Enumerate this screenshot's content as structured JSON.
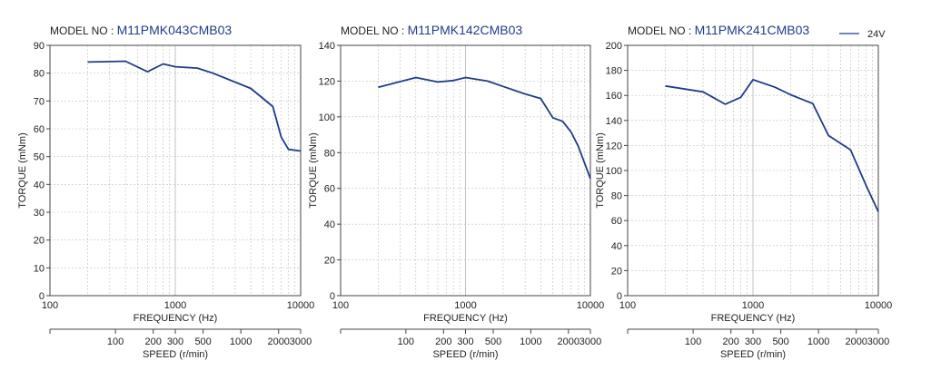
{
  "colors": {
    "series": "#1f3c88",
    "grid": "#bdbdbd",
    "axis": "#444444",
    "text": "#222222",
    "title_model": "#1f3c88"
  },
  "legend": {
    "label": "24V",
    "position": "top-right"
  },
  "chart_data": [
    {
      "type": "line",
      "title_prefix": "MODEL NO : ",
      "title_model": "M11PMK043CMB03",
      "xlabel": "FREQUENCY (Hz)",
      "ylabel": "TORQUE (mNm)",
      "x_scale": "log",
      "xlim": [
        100,
        10000
      ],
      "ylim": [
        0,
        90
      ],
      "x_ticks": [
        "100",
        "1000",
        "10000"
      ],
      "y_ticks": [
        "0",
        "10",
        "20",
        "30",
        "40",
        "50",
        "60",
        "70",
        "80",
        "90"
      ],
      "speed_axis": {
        "label": "SPEED (r/min)",
        "ticks": [
          {
            "label": "100",
            "freq": 333
          },
          {
            "label": "200",
            "freq": 667
          },
          {
            "label": "300",
            "freq": 1000
          },
          {
            "label": "500",
            "freq": 1667
          },
          {
            "label": "1000",
            "freq": 3333
          },
          {
            "label": "2000",
            "freq": 6667
          },
          {
            "label": "3000",
            "freq": 10000
          }
        ]
      },
      "series": [
        {
          "x": [
            200,
            400,
            600,
            800,
            1000,
            1500,
            2000,
            3000,
            4000,
            6000,
            7000,
            8000,
            10000
          ],
          "y": [
            84,
            84.3,
            80.5,
            83.3,
            82.3,
            81.8,
            80,
            76.8,
            74.5,
            68,
            57,
            52.6,
            52
          ]
        }
      ]
    },
    {
      "type": "line",
      "title_prefix": "MODEL NO : ",
      "title_model": "M11PMK142CMB03",
      "xlabel": "FREQUENCY (Hz)",
      "ylabel": "TORQUE (mNm)",
      "x_scale": "log",
      "xlim": [
        100,
        10000
      ],
      "ylim": [
        0,
        140
      ],
      "x_ticks": [
        "100",
        "1000",
        "10000"
      ],
      "y_ticks": [
        "0",
        "20",
        "40",
        "60",
        "80",
        "100",
        "120",
        "140"
      ],
      "speed_axis": {
        "label": "SPEED (r/min)",
        "ticks": [
          {
            "label": "100",
            "freq": 333
          },
          {
            "label": "200",
            "freq": 667
          },
          {
            "label": "300",
            "freq": 1000
          },
          {
            "label": "500",
            "freq": 1667
          },
          {
            "label": "1000",
            "freq": 3333
          },
          {
            "label": "2000",
            "freq": 6667
          },
          {
            "label": "3000",
            "freq": 10000
          }
        ]
      },
      "series": [
        {
          "x": [
            200,
            400,
            600,
            800,
            1000,
            1500,
            2000,
            3000,
            4000,
            5000,
            6000,
            7000,
            8000,
            10000
          ],
          "y": [
            116.5,
            122,
            119.5,
            120.3,
            122,
            120,
            117,
            112.8,
            110.3,
            99.5,
            97.5,
            91.5,
            83.5,
            65.5
          ]
        }
      ]
    },
    {
      "type": "line",
      "title_prefix": "MODEL NO : ",
      "title_model": "M11PMK241CMB03",
      "xlabel": "FREQUENCY (Hz)",
      "ylabel": "TORQUE (mNm)",
      "x_scale": "log",
      "xlim": [
        100,
        10000
      ],
      "ylim": [
        0,
        200
      ],
      "x_ticks": [
        "100",
        "1000",
        "10000"
      ],
      "y_ticks": [
        "0",
        "20",
        "40",
        "60",
        "80",
        "100",
        "120",
        "140",
        "160",
        "180",
        "200"
      ],
      "speed_axis": {
        "label": "SPEED (r/min)",
        "ticks": [
          {
            "label": "100",
            "freq": 333
          },
          {
            "label": "200",
            "freq": 667
          },
          {
            "label": "300",
            "freq": 1000
          },
          {
            "label": "500",
            "freq": 1667
          },
          {
            "label": "1000",
            "freq": 3333
          },
          {
            "label": "2000",
            "freq": 6667
          },
          {
            "label": "3000",
            "freq": 10000
          }
        ]
      },
      "series": [
        {
          "x": [
            200,
            400,
            600,
            800,
            1000,
            1500,
            2000,
            3000,
            4000,
            6000,
            8000,
            10000
          ],
          "y": [
            167.5,
            162.8,
            153,
            158.5,
            172.5,
            166.5,
            160.5,
            153.5,
            128,
            116.5,
            88,
            67
          ]
        }
      ]
    }
  ]
}
